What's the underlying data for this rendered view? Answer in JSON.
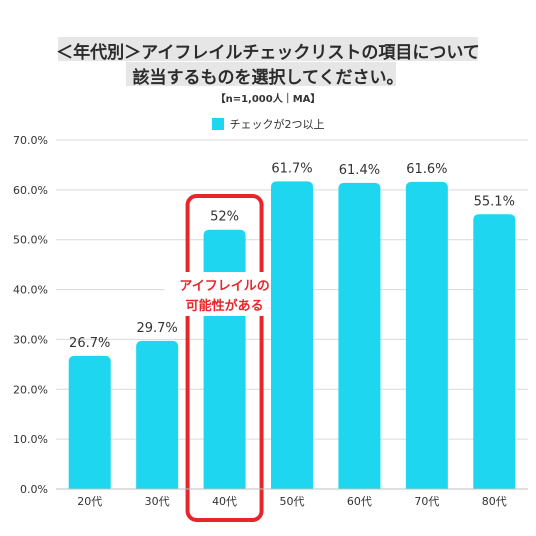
{
  "title_line1": "＜年代別＞アイフレイルチェックリストの項目について",
  "title_line2": "該当するものを選択してください。",
  "note": "【n=1,000人｜MA】",
  "colors": {
    "bar": "#1fd6f0",
    "highlight": "#e8262a",
    "grid": "#d9d9d9"
  },
  "chart_data": {
    "type": "bar",
    "title": "＜年代別＞アイフレイルチェックリストの項目について該当するものを選択してください。",
    "categories": [
      "20代",
      "30代",
      "40代",
      "50代",
      "60代",
      "70代",
      "80代"
    ],
    "series": [
      {
        "name": "チェックが2つ以上",
        "values": [
          26.7,
          29.7,
          52,
          61.7,
          61.4,
          61.6,
          55.1
        ]
      }
    ],
    "data_labels": [
      "26.7%",
      "29.7%",
      "52%",
      "61.7%",
      "61.4%",
      "61.6%",
      "55.1%"
    ],
    "y_ticks": [
      "0.0%",
      "10.0%",
      "20.0%",
      "30.0%",
      "40.0%",
      "50.0%",
      "60.0%",
      "70.0%"
    ],
    "ylim": [
      0,
      70
    ],
    "grid": true,
    "legend_position": "top",
    "highlight_category": "40代",
    "annotation": [
      "アイフレイルの",
      "可能性がある"
    ]
  }
}
